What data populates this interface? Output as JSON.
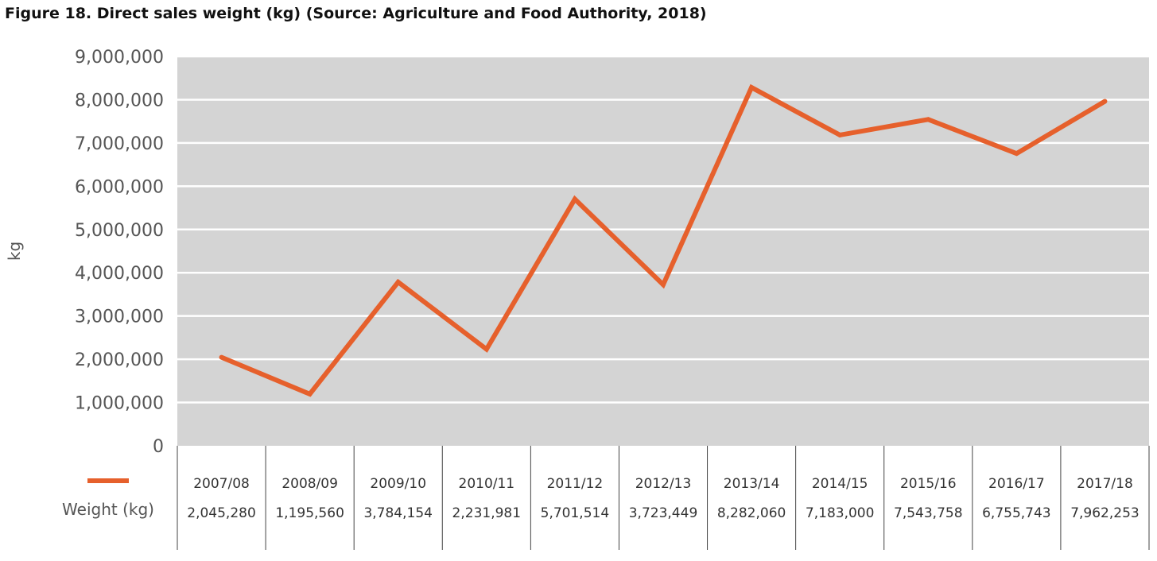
{
  "figure": {
    "title": "Figure 18. Direct sales weight (kg) (Source: Agriculture and Food Authority, 2018)"
  },
  "colors": {
    "plot_background": "#d4d4d4",
    "gridline": "#ffffff",
    "series_line": "#e6602c",
    "table_border": "#444444"
  },
  "chart_data": {
    "type": "line",
    "title": "Figure 18. Direct sales weight (kg) (Source: Agriculture and Food Authority, 2018)",
    "xlabel": "",
    "ylabel": "kg",
    "ylim": [
      0,
      9000000
    ],
    "yticks": [
      0,
      1000000,
      2000000,
      3000000,
      4000000,
      5000000,
      6000000,
      7000000,
      8000000,
      9000000
    ],
    "ytick_labels": [
      "0",
      "1,000,000",
      "2,000,000",
      "3,000,000",
      "4,000,000",
      "5,000,000",
      "6,000,000",
      "7,000,000",
      "8,000,000",
      "9,000,000"
    ],
    "grid": true,
    "legend": "data-table-left",
    "categories": [
      "2007/08",
      "2008/09",
      "2009/10",
      "2010/11",
      "2011/12",
      "2012/13",
      "2013/14",
      "2014/15",
      "2015/16",
      "2016/17",
      "2017/18"
    ],
    "series": [
      {
        "name": "Weight (kg)",
        "color": "#e6602c",
        "values": [
          2045280,
          1195560,
          3784154,
          2231981,
          5701514,
          3723449,
          8282060,
          7183000,
          7543758,
          6755743,
          7962253
        ],
        "value_labels": [
          "2,045,280",
          "1,195,560",
          "3,784,154",
          "2,231,981",
          "5,701,514",
          "3,723,449",
          "8,282,060",
          "7,183,000",
          "7,543,758",
          "6,755,743",
          "7,962,253"
        ]
      }
    ]
  }
}
